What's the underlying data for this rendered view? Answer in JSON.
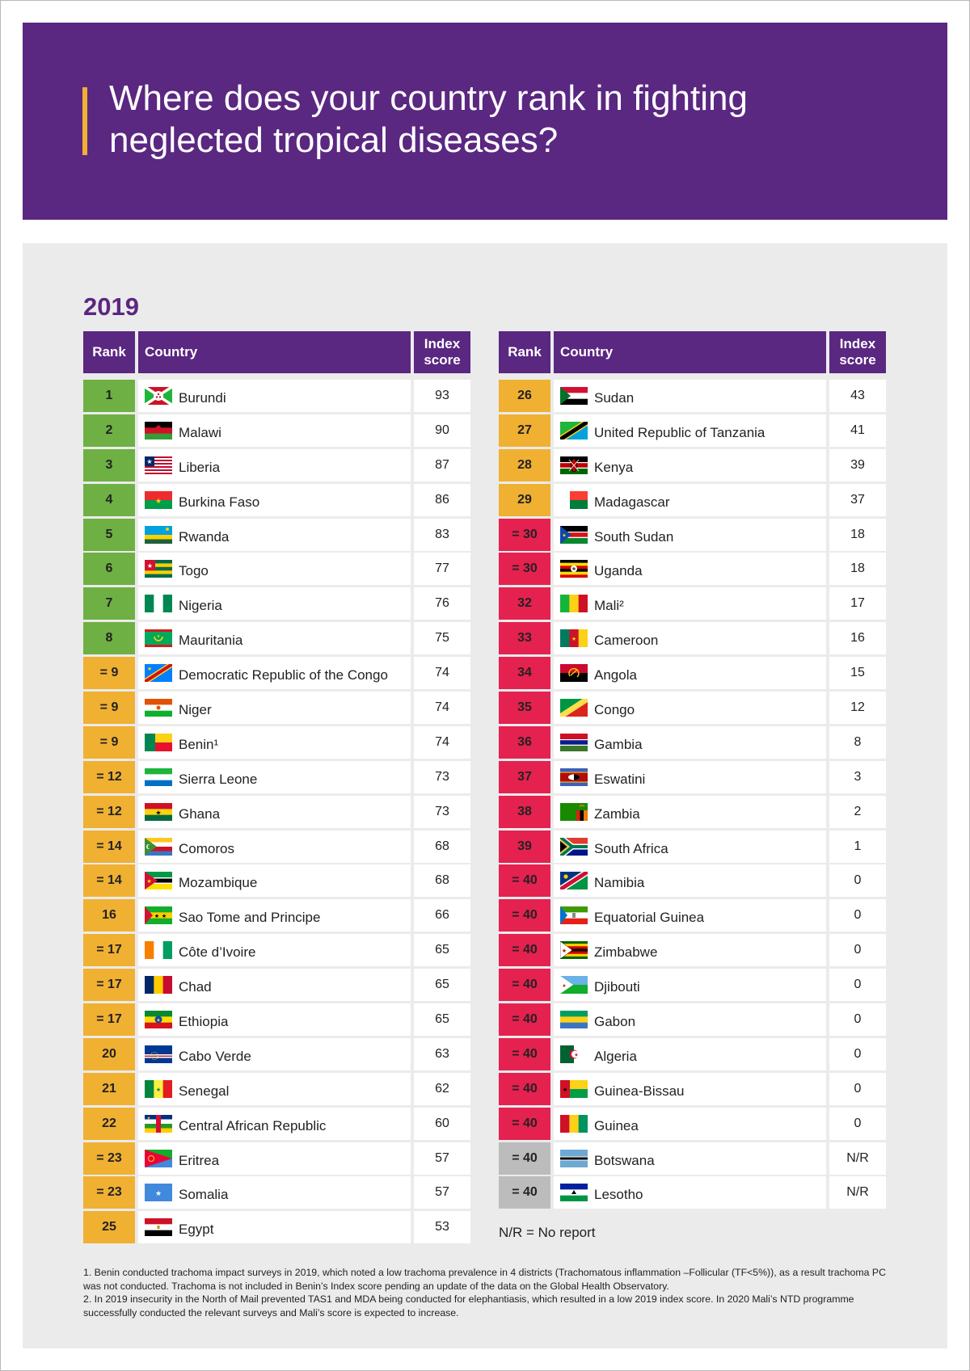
{
  "header": {
    "title": "Where does your country rank in fighting neglected tropical diseases?"
  },
  "year": "2019",
  "columns": {
    "rank": "Rank",
    "country": "Country",
    "score": "Index score"
  },
  "colors": {
    "purple": "#5a2781",
    "accent": "#f0b032",
    "green": "#6eb043",
    "orange": "#f0b032",
    "red": "#e5214f",
    "grey": "#bcbcbc"
  },
  "left_rows": [
    {
      "rank": "1",
      "country": "Burundi",
      "score": "93",
      "color": "green",
      "flag": "burundi-flag"
    },
    {
      "rank": "2",
      "country": "Malawi",
      "score": "90",
      "color": "green",
      "flag": "malawi-flag"
    },
    {
      "rank": "3",
      "country": "Liberia",
      "score": "87",
      "color": "green",
      "flag": "liberia-flag"
    },
    {
      "rank": "4",
      "country": "Burkina Faso",
      "score": "86",
      "color": "green",
      "flag": "burkina-faso-flag"
    },
    {
      "rank": "5",
      "country": "Rwanda",
      "score": "83",
      "color": "green",
      "flag": "rwanda-flag"
    },
    {
      "rank": "6",
      "country": "Togo",
      "score": "77",
      "color": "green",
      "flag": "togo-flag"
    },
    {
      "rank": "7",
      "country": "Nigeria",
      "score": "76",
      "color": "green",
      "flag": "nigeria-flag"
    },
    {
      "rank": "8",
      "country": "Mauritania",
      "score": "75",
      "color": "green",
      "flag": "mauritania-flag"
    },
    {
      "rank": "= 9",
      "country": "Democratic Republic of the Congo",
      "score": "74",
      "color": "orange",
      "flag": "drc-flag"
    },
    {
      "rank": "= 9",
      "country": "Niger",
      "score": "74",
      "color": "orange",
      "flag": "niger-flag"
    },
    {
      "rank": "= 9",
      "country": "Benin¹",
      "score": "74",
      "color": "orange",
      "flag": "benin-flag"
    },
    {
      "rank": "= 12",
      "country": "Sierra Leone",
      "score": "73",
      "color": "orange",
      "flag": "sierra-leone-flag"
    },
    {
      "rank": "= 12",
      "country": "Ghana",
      "score": "73",
      "color": "orange",
      "flag": "ghana-flag"
    },
    {
      "rank": "= 14",
      "country": "Comoros",
      "score": "68",
      "color": "orange",
      "flag": "comoros-flag"
    },
    {
      "rank": "= 14",
      "country": "Mozambique",
      "score": "68",
      "color": "orange",
      "flag": "mozambique-flag"
    },
    {
      "rank": "16",
      "country": "Sao Tome and Principe",
      "score": "66",
      "color": "orange",
      "flag": "sao-tome-flag"
    },
    {
      "rank": "= 17",
      "country": "Côte d’Ivoire",
      "score": "65",
      "color": "orange",
      "flag": "cote-divoire-flag"
    },
    {
      "rank": "= 17",
      "country": "Chad",
      "score": "65",
      "color": "orange",
      "flag": "chad-flag"
    },
    {
      "rank": "= 17",
      "country": "Ethiopia",
      "score": "65",
      "color": "orange",
      "flag": "ethiopia-flag"
    },
    {
      "rank": "20",
      "country": "Cabo Verde",
      "score": "63",
      "color": "orange",
      "flag": "cabo-verde-flag"
    },
    {
      "rank": "21",
      "country": "Senegal",
      "score": "62",
      "color": "orange",
      "flag": "senegal-flag"
    },
    {
      "rank": "22",
      "country": "Central African Republic",
      "score": "60",
      "color": "orange",
      "flag": "car-flag"
    },
    {
      "rank": "= 23",
      "country": "Eritrea",
      "score": "57",
      "color": "orange",
      "flag": "eritrea-flag"
    },
    {
      "rank": "= 23",
      "country": "Somalia",
      "score": "57",
      "color": "orange",
      "flag": "somalia-flag"
    },
    {
      "rank": "25",
      "country": "Egypt",
      "score": "53",
      "color": "orange",
      "flag": "egypt-flag"
    }
  ],
  "right_rows": [
    {
      "rank": "26",
      "country": "Sudan",
      "score": "43",
      "color": "orange",
      "flag": "sudan-flag"
    },
    {
      "rank": "27",
      "country": "United Republic of Tanzania",
      "score": "41",
      "color": "orange",
      "flag": "tanzania-flag"
    },
    {
      "rank": "28",
      "country": "Kenya",
      "score": "39",
      "color": "orange",
      "flag": "kenya-flag"
    },
    {
      "rank": "29",
      "country": "Madagascar",
      "score": "37",
      "color": "orange",
      "flag": "madagascar-flag"
    },
    {
      "rank": "= 30",
      "country": "South Sudan",
      "score": "18",
      "color": "red",
      "flag": "south-sudan-flag"
    },
    {
      "rank": "= 30",
      "country": "Uganda",
      "score": "18",
      "color": "red",
      "flag": "uganda-flag"
    },
    {
      "rank": "32",
      "country": "Mali²",
      "score": "17",
      "color": "red",
      "flag": "mali-flag"
    },
    {
      "rank": "33",
      "country": "Cameroon",
      "score": "16",
      "color": "red",
      "flag": "cameroon-flag"
    },
    {
      "rank": "34",
      "country": "Angola",
      "score": "15",
      "color": "red",
      "flag": "angola-flag"
    },
    {
      "rank": "35",
      "country": "Congo",
      "score": "12",
      "color": "red",
      "flag": "congo-flag"
    },
    {
      "rank": "36",
      "country": "Gambia",
      "score": "8",
      "color": "red",
      "flag": "gambia-flag"
    },
    {
      "rank": "37",
      "country": "Eswatini",
      "score": "3",
      "color": "red",
      "flag": "eswatini-flag"
    },
    {
      "rank": "38",
      "country": "Zambia",
      "score": "2",
      "color": "red",
      "flag": "zambia-flag"
    },
    {
      "rank": "39",
      "country": "South Africa",
      "score": "1",
      "color": "red",
      "flag": "south-africa-flag"
    },
    {
      "rank": "= 40",
      "country": "Namibia",
      "score": "0",
      "color": "red",
      "flag": "namibia-flag"
    },
    {
      "rank": "= 40",
      "country": "Equatorial Guinea",
      "score": "0",
      "color": "red",
      "flag": "equatorial-guinea-flag"
    },
    {
      "rank": "= 40",
      "country": "Zimbabwe",
      "score": "0",
      "color": "red",
      "flag": "zimbabwe-flag"
    },
    {
      "rank": "= 40",
      "country": "Djibouti",
      "score": "0",
      "color": "red",
      "flag": "djibouti-flag"
    },
    {
      "rank": "= 40",
      "country": "Gabon",
      "score": "0",
      "color": "red",
      "flag": "gabon-flag"
    },
    {
      "rank": "= 40",
      "country": "Algeria",
      "score": "0",
      "color": "red",
      "flag": "algeria-flag"
    },
    {
      "rank": "= 40",
      "country": "Guinea-Bissau",
      "score": "0",
      "color": "red",
      "flag": "guinea-bissau-flag"
    },
    {
      "rank": "= 40",
      "country": "Guinea",
      "score": "0",
      "color": "red",
      "flag": "guinea-flag"
    },
    {
      "rank": "= 40",
      "country": "Botswana",
      "score": "N/R",
      "color": "grey",
      "flag": "botswana-flag"
    },
    {
      "rank": "= 40",
      "country": "Lesotho",
      "score": "N/R",
      "color": "grey",
      "flag": "lesotho-flag"
    }
  ],
  "legend_nr": "N/R = No report",
  "footnotes": [
    "1. Benin conducted trachoma impact surveys in 2019, which noted a low trachoma prevalence in 4 districts (Trachomatous inflammation –Follicular (TF<5%)), as a result trachoma PC was not conducted. Trachoma is not included in Benin’s Index score pending an update of the data on the Global Health Observatory.",
    "2. In 2019 insecurity in the North of Mail prevented TAS1 and MDA being conducted for elephantiasis, which resulted in a low 2019 index score. In 2020 Mali’s NTD programme successfully conducted the relevant surveys and Mali’s score is expected to increase."
  ]
}
